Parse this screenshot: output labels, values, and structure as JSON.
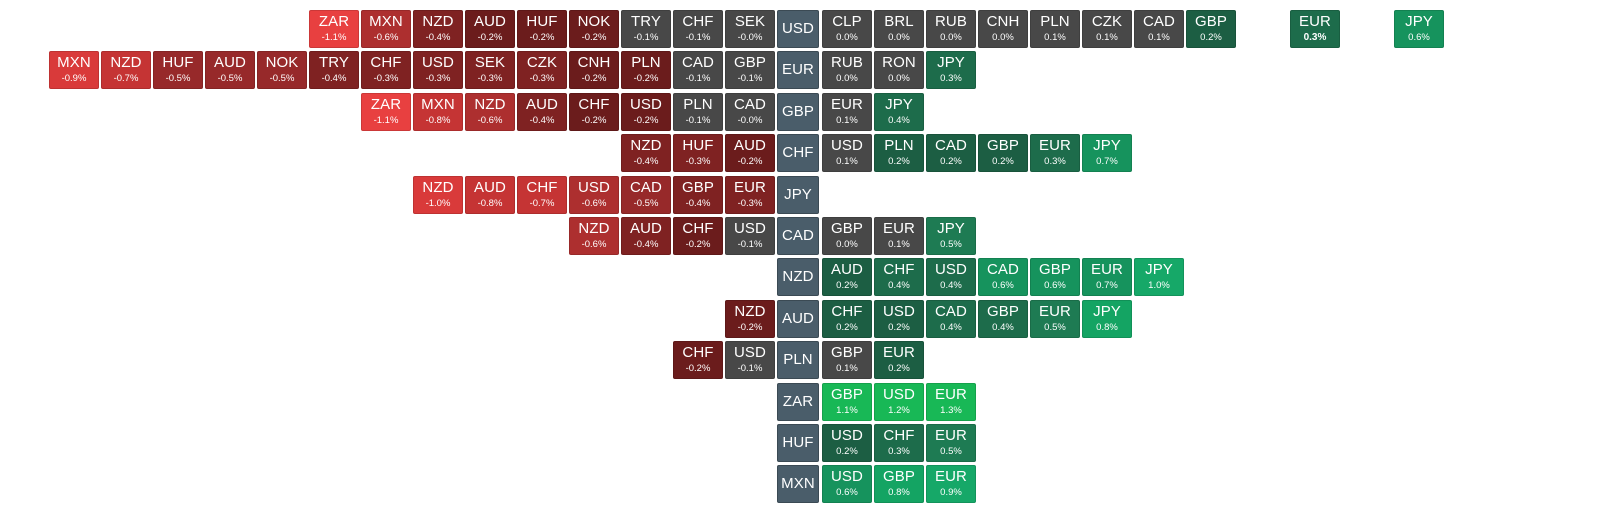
{
  "heatmap": {
    "rows": [
      {
        "base": "USD",
        "left": [
          {
            "code": "ZAR",
            "change": "-1.1%"
          },
          {
            "code": "MXN",
            "change": "-0.6%"
          },
          {
            "code": "NZD",
            "change": "-0.4%"
          },
          {
            "code": "AUD",
            "change": "-0.2%"
          },
          {
            "code": "HUF",
            "change": "-0.2%"
          },
          {
            "code": "NOK",
            "change": "-0.2%"
          },
          {
            "code": "TRY",
            "change": "-0.1%"
          },
          {
            "code": "CHF",
            "change": "-0.1%"
          },
          {
            "code": "SEK",
            "change": "-0.0%"
          }
        ],
        "right": [
          {
            "code": "CLP",
            "change": "0.0%"
          },
          {
            "code": "BRL",
            "change": "0.0%"
          },
          {
            "code": "RUB",
            "change": "0.0%"
          },
          {
            "code": "CNH",
            "change": "0.0%"
          },
          {
            "code": "PLN",
            "change": "0.1%"
          },
          {
            "code": "CZK",
            "change": "0.1%"
          },
          {
            "code": "CAD",
            "change": "0.1%"
          },
          {
            "code": "GBP",
            "change": "0.2%"
          },
          {
            "code": "EUR",
            "change": "0.3%",
            "gap": 1,
            "bold": true
          },
          {
            "code": "JPY",
            "change": "0.6%",
            "gap": 1
          }
        ]
      },
      {
        "base": "EUR",
        "left": [
          {
            "code": "MXN",
            "change": "-0.9%"
          },
          {
            "code": "NZD",
            "change": "-0.7%"
          },
          {
            "code": "HUF",
            "change": "-0.5%"
          },
          {
            "code": "AUD",
            "change": "-0.5%"
          },
          {
            "code": "NOK",
            "change": "-0.5%"
          },
          {
            "code": "TRY",
            "change": "-0.4%"
          },
          {
            "code": "CHF",
            "change": "-0.3%"
          },
          {
            "code": "USD",
            "change": "-0.3%"
          },
          {
            "code": "SEK",
            "change": "-0.3%"
          },
          {
            "code": "CZK",
            "change": "-0.3%"
          },
          {
            "code": "CNH",
            "change": "-0.2%"
          },
          {
            "code": "PLN",
            "change": "-0.2%"
          },
          {
            "code": "CAD",
            "change": "-0.1%"
          },
          {
            "code": "GBP",
            "change": "-0.1%"
          }
        ],
        "right": [
          {
            "code": "RUB",
            "change": "0.0%"
          },
          {
            "code": "RON",
            "change": "0.0%"
          },
          {
            "code": "JPY",
            "change": "0.3%"
          }
        ]
      },
      {
        "base": "GBP",
        "left": [
          {
            "code": "ZAR",
            "change": "-1.1%"
          },
          {
            "code": "MXN",
            "change": "-0.8%"
          },
          {
            "code": "NZD",
            "change": "-0.6%"
          },
          {
            "code": "AUD",
            "change": "-0.4%"
          },
          {
            "code": "CHF",
            "change": "-0.2%"
          },
          {
            "code": "USD",
            "change": "-0.2%"
          },
          {
            "code": "PLN",
            "change": "-0.1%"
          },
          {
            "code": "CAD",
            "change": "-0.0%"
          }
        ],
        "right": [
          {
            "code": "EUR",
            "change": "0.1%"
          },
          {
            "code": "JPY",
            "change": "0.4%"
          }
        ]
      },
      {
        "base": "CHF",
        "left": [
          {
            "code": "NZD",
            "change": "-0.4%"
          },
          {
            "code": "HUF",
            "change": "-0.3%"
          },
          {
            "code": "AUD",
            "change": "-0.2%"
          }
        ],
        "right": [
          {
            "code": "USD",
            "change": "0.1%"
          },
          {
            "code": "PLN",
            "change": "0.2%"
          },
          {
            "code": "CAD",
            "change": "0.2%"
          },
          {
            "code": "GBP",
            "change": "0.2%"
          },
          {
            "code": "EUR",
            "change": "0.3%"
          },
          {
            "code": "JPY",
            "change": "0.7%"
          }
        ]
      },
      {
        "base": "JPY",
        "left": [
          {
            "code": "NZD",
            "change": "-1.0%"
          },
          {
            "code": "AUD",
            "change": "-0.8%"
          },
          {
            "code": "CHF",
            "change": "-0.7%"
          },
          {
            "code": "USD",
            "change": "-0.6%"
          },
          {
            "code": "CAD",
            "change": "-0.5%"
          },
          {
            "code": "GBP",
            "change": "-0.4%"
          },
          {
            "code": "EUR",
            "change": "-0.3%"
          }
        ],
        "right": []
      },
      {
        "base": "CAD",
        "left": [
          {
            "code": "NZD",
            "change": "-0.6%"
          },
          {
            "code": "AUD",
            "change": "-0.4%"
          },
          {
            "code": "CHF",
            "change": "-0.2%"
          },
          {
            "code": "USD",
            "change": "-0.1%"
          }
        ],
        "right": [
          {
            "code": "GBP",
            "change": "0.0%"
          },
          {
            "code": "EUR",
            "change": "0.1%"
          },
          {
            "code": "JPY",
            "change": "0.5%"
          }
        ]
      },
      {
        "base": "NZD",
        "left": [],
        "right": [
          {
            "code": "AUD",
            "change": "0.2%"
          },
          {
            "code": "CHF",
            "change": "0.4%"
          },
          {
            "code": "USD",
            "change": "0.4%"
          },
          {
            "code": "CAD",
            "change": "0.6%"
          },
          {
            "code": "GBP",
            "change": "0.6%"
          },
          {
            "code": "EUR",
            "change": "0.7%"
          },
          {
            "code": "JPY",
            "change": "1.0%"
          }
        ]
      },
      {
        "base": "AUD",
        "left": [
          {
            "code": "NZD",
            "change": "-0.2%"
          }
        ],
        "right": [
          {
            "code": "CHF",
            "change": "0.2%"
          },
          {
            "code": "USD",
            "change": "0.2%"
          },
          {
            "code": "CAD",
            "change": "0.4%"
          },
          {
            "code": "GBP",
            "change": "0.4%"
          },
          {
            "code": "EUR",
            "change": "0.5%"
          },
          {
            "code": "JPY",
            "change": "0.8%"
          }
        ]
      },
      {
        "base": "PLN",
        "left": [
          {
            "code": "CHF",
            "change": "-0.2%"
          },
          {
            "code": "USD",
            "change": "-0.1%"
          }
        ],
        "right": [
          {
            "code": "GBP",
            "change": "0.1%"
          },
          {
            "code": "EUR",
            "change": "0.2%"
          }
        ]
      },
      {
        "base": "ZAR",
        "left": [],
        "right": [
          {
            "code": "GBP",
            "change": "1.1%"
          },
          {
            "code": "USD",
            "change": "1.2%"
          },
          {
            "code": "EUR",
            "change": "1.3%"
          }
        ]
      },
      {
        "base": "HUF",
        "left": [],
        "right": [
          {
            "code": "USD",
            "change": "0.2%"
          },
          {
            "code": "CHF",
            "change": "0.3%"
          },
          {
            "code": "EUR",
            "change": "0.5%"
          }
        ]
      },
      {
        "base": "MXN",
        "left": [],
        "right": [
          {
            "code": "USD",
            "change": "0.6%"
          },
          {
            "code": "GBP",
            "change": "0.8%"
          },
          {
            "code": "EUR",
            "change": "0.9%"
          }
        ]
      }
    ]
  }
}
